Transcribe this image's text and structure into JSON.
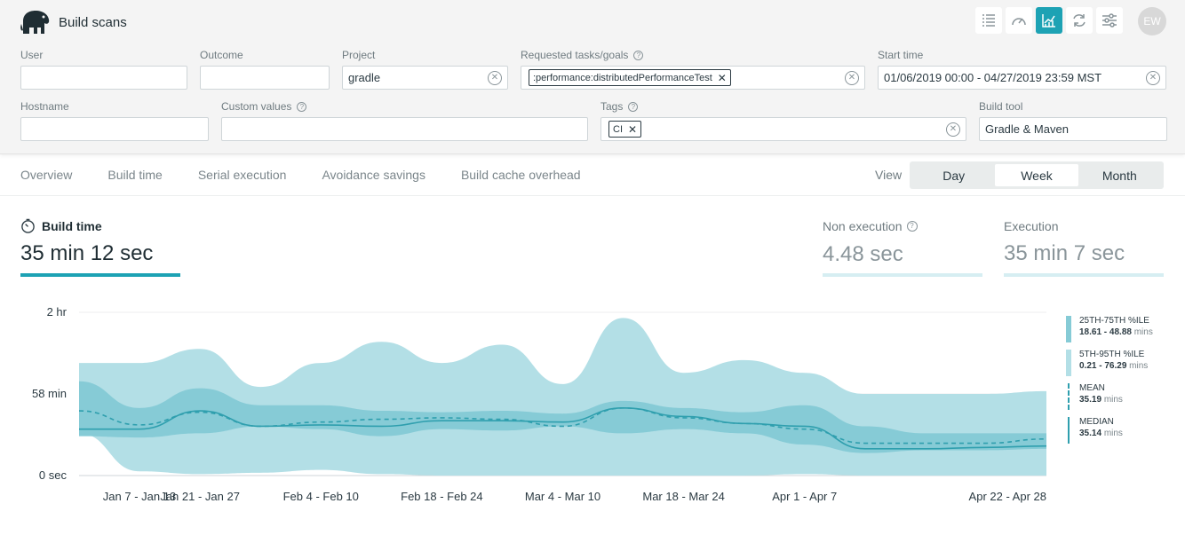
{
  "app": {
    "title": "Build scans",
    "avatar_initials": "EW",
    "accent_color": "#1da2b4"
  },
  "toolbar": {
    "icons": [
      "list-icon",
      "gauge-icon",
      "trend-chart-icon",
      "refresh-icon",
      "sliders-icon"
    ],
    "active": "trend-chart-icon"
  },
  "filters": {
    "user": {
      "label": "User",
      "value": ""
    },
    "outcome": {
      "label": "Outcome",
      "value": ""
    },
    "project": {
      "label": "Project",
      "value": "gradle"
    },
    "requested_tasks": {
      "label": "Requested tasks/goals",
      "chip": ":performance:distributedPerformanceTest"
    },
    "start_time": {
      "label": "Start time",
      "value": "01/06/2019 00:00 - 04/27/2019 23:59 MST"
    },
    "hostname": {
      "label": "Hostname",
      "value": ""
    },
    "custom_values": {
      "label": "Custom values",
      "value": ""
    },
    "tags": {
      "label": "Tags",
      "chip": "CI"
    },
    "build_tool": {
      "label": "Build tool",
      "value": "Gradle & Maven"
    }
  },
  "nav": {
    "tabs": [
      "Overview",
      "Build time",
      "Serial execution",
      "Avoidance savings",
      "Build cache overhead"
    ]
  },
  "view": {
    "label": "View",
    "options": [
      "Day",
      "Week",
      "Month"
    ],
    "selected": "Week"
  },
  "metrics": {
    "build_time": {
      "label": "Build time",
      "value": "35 min 12 sec"
    },
    "non_execution": {
      "label": "Non execution",
      "value": "4.48 sec"
    },
    "execution": {
      "label": "Execution",
      "value": "35 min 7 sec"
    }
  },
  "legend": {
    "p25_75": {
      "name": "25TH-75TH %ILE",
      "value": "18.61 - 48.88",
      "unit": "mins"
    },
    "p5_95": {
      "name": "5TH-95TH %ILE",
      "value": "0.21 - 76.29",
      "unit": "mins"
    },
    "mean": {
      "name": "MEAN",
      "value": "35.19",
      "unit": "mins"
    },
    "median": {
      "name": "MEDIAN",
      "value": "35.14",
      "unit": "mins"
    }
  },
  "chart_data": {
    "type": "area",
    "y_tick_labels": [
      "0 sec",
      "58 min",
      "2 hr"
    ],
    "y_tick_values": [
      0,
      58,
      116
    ],
    "ylim": [
      0,
      116
    ],
    "x_tick_labels": [
      "Jan 7 - Jan 13",
      "Jan 21 - Jan 27",
      "Feb 4 - Feb 10",
      "Feb 18 - Feb 24",
      "Mar 4 - Mar 10",
      "Mar 18 - Mar 24",
      "Apr 1 - Apr 7",
      "Apr 22 - Apr 28"
    ],
    "x": [
      0,
      1,
      2,
      3,
      4,
      5,
      6,
      7,
      8,
      9,
      10,
      11,
      12,
      13,
      14,
      15,
      16
    ],
    "series": [
      {
        "name": "5TH-95TH %ILE",
        "lower": [
          30,
          3,
          1,
          2,
          4,
          1,
          0,
          0,
          0,
          0,
          0,
          0,
          1,
          0,
          0,
          0,
          0
        ],
        "upper": [
          80,
          80,
          90,
          63,
          80,
          95,
          80,
          93,
          65,
          112,
          73,
          82,
          73,
          58,
          58,
          58,
          60
        ]
      },
      {
        "name": "25TH-75TH %ILE",
        "lower": [
          28,
          27,
          30,
          35,
          33,
          28,
          33,
          32,
          35,
          30,
          33,
          30,
          22,
          16,
          18,
          18,
          19
        ],
        "upper": [
          67,
          48,
          62,
          50,
          50,
          46,
          45,
          46,
          44,
          53,
          48,
          45,
          50,
          35,
          30,
          30,
          30
        ]
      },
      {
        "name": "MEAN",
        "values": [
          46,
          36,
          45,
          35,
          38,
          40,
          41,
          40,
          35,
          48,
          41,
          37,
          33,
          23,
          23,
          23,
          26
        ]
      },
      {
        "name": "MEDIAN",
        "values": [
          33,
          33,
          46,
          35,
          36,
          35,
          39,
          39,
          38,
          48,
          42,
          37,
          35,
          19,
          19,
          20,
          21
        ]
      }
    ],
    "colors": {
      "outer_band": "#b3dfe6",
      "inner_band": "#86cbd6",
      "line": "#2f9fae"
    },
    "legend_position": "right"
  }
}
